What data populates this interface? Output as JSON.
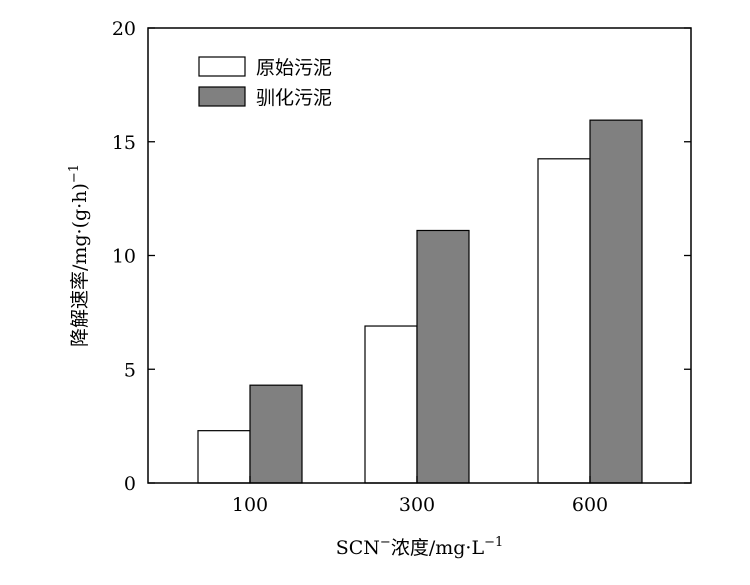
{
  "chart_data": {
    "type": "bar",
    "categories": [
      "100",
      "300",
      "600"
    ],
    "series": [
      {
        "name": "原始污泥",
        "values": [
          2.3,
          6.9,
          14.25
        ],
        "color": "#ffffff"
      },
      {
        "name": "驯化污泥",
        "values": [
          4.3,
          11.1,
          15.95
        ],
        "color": "#808080"
      }
    ],
    "ylim": [
      0,
      20
    ],
    "yticks": [
      0,
      5,
      10,
      15,
      20
    ],
    "xlabel": {
      "prefix": "SCN",
      "sup": "−",
      "text": "浓度/mg·L",
      "sup_end": "−1"
    },
    "ylabel": {
      "text": "降解速率/mg·(g·h)",
      "sup": "−1"
    },
    "legend_position": "top-left",
    "grid": false
  }
}
